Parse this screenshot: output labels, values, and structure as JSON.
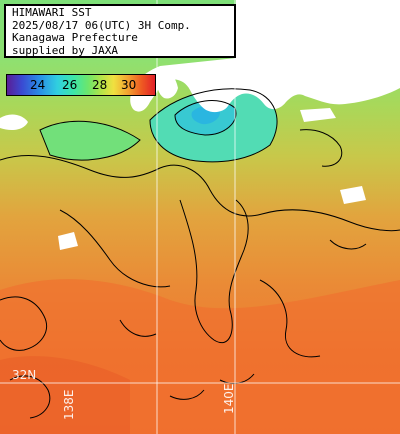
{
  "info": {
    "lines": [
      "HIMAWARI SST",
      "2025/08/17 06(UTC) 3H Comp.",
      "Kanagawa Prefecture",
      "supplied by JAXA"
    ]
  },
  "colorbar": {
    "ticks": [
      "24",
      "26",
      "28",
      "30"
    ],
    "colors": [
      "#5a1e96",
      "#3a4ad2",
      "#2a8ee6",
      "#30cfe0",
      "#3de6a8",
      "#6ee66a",
      "#b6e448",
      "#f0e040",
      "#f2a030",
      "#ee5a22",
      "#e2202a"
    ]
  },
  "grid": {
    "lat_label": "32N",
    "lon_labels": [
      "138E",
      "140E"
    ]
  },
  "map_colors": {
    "land": "#ffffff",
    "cloud_mask": "#ffffff",
    "contour": "#000000",
    "grid_line": "#ffffff"
  }
}
